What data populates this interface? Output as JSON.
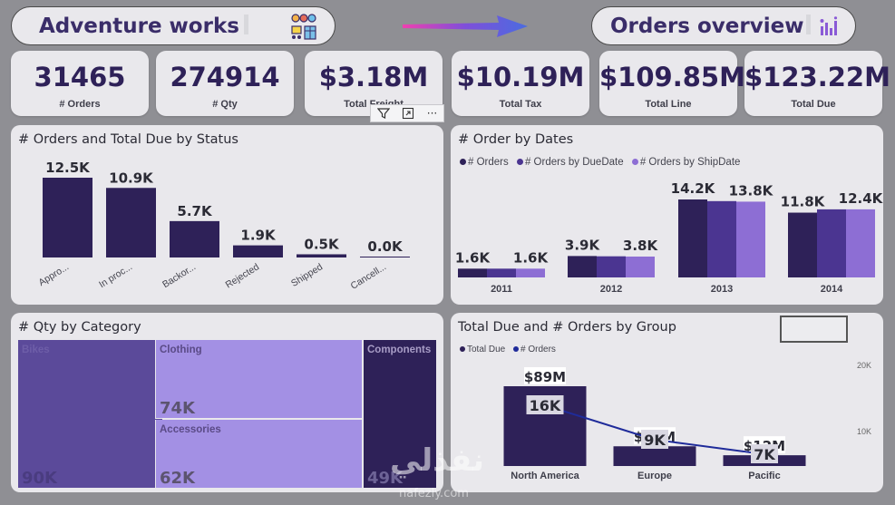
{
  "header": {
    "title": "Adventure works",
    "page_title": "Orders overview",
    "icons": [
      "people-cart-icon",
      "arrow-gradient-icon",
      "bar-chart-icon"
    ]
  },
  "kpis": [
    {
      "value": "31465",
      "label": "# Orders"
    },
    {
      "value": "274914",
      "label": "# Qty"
    },
    {
      "value": "$3.18M",
      "label": "Total Freight"
    },
    {
      "value": "$10.19M",
      "label": "Total Tax"
    },
    {
      "value": "$109.85M",
      "label": "Total Line"
    },
    {
      "value": "$123.22M",
      "label": "Total Due"
    }
  ],
  "visual_toolbar": {
    "filter": "filter-icon",
    "focus": "focus-mode-icon",
    "more": "···"
  },
  "status_chart": {
    "title": "# Orders and Total Due by Status",
    "chart_data": {
      "type": "bar",
      "categories": [
        "Appro...",
        "In proc...",
        "Backor...",
        "Rejected",
        "Shipped",
        "Cancell..."
      ],
      "values": [
        12.5,
        10.9,
        5.7,
        1.9,
        0.5,
        0.0
      ],
      "labels": [
        "12.5K",
        "10.9K",
        "5.7K",
        "1.9K",
        "0.5K",
        "0.0K"
      ],
      "color": "#2e2158"
    }
  },
  "dates_chart": {
    "title": "# Order by Dates",
    "legend": [
      "# Orders",
      "# Orders by DueDate",
      "# Orders by ShipDate"
    ],
    "chart_data": {
      "type": "bar",
      "categories": [
        "2011",
        "2012",
        "2013",
        "2014"
      ],
      "series": [
        {
          "name": "# Orders",
          "values": [
            1.6,
            3.9,
            14.2,
            11.8
          ],
          "color": "#2e2158"
        },
        {
          "name": "# Orders by DueDate",
          "values": [
            1.6,
            3.85,
            13.9,
            12.4
          ],
          "color": "#4b3591"
        },
        {
          "name": "# Orders by ShipDate",
          "values": [
            1.6,
            3.8,
            13.8,
            12.4
          ],
          "color": "#8d6ed4"
        }
      ],
      "labels": [
        [
          "1.6K",
          "1.6K"
        ],
        [
          "3.9K",
          "3.8K"
        ],
        [
          "14.2K",
          "13.8K"
        ],
        [
          "11.8K",
          "12.4K"
        ]
      ]
    }
  },
  "category_chart": {
    "title": "# Qty by Category",
    "chart_data": {
      "type": "treemap",
      "items": [
        {
          "name": "Bikes",
          "value": 90,
          "label": "90K",
          "color": "#5b4a9a"
        },
        {
          "name": "Clothing",
          "value": 74,
          "label": "74K",
          "color": "#a390e4"
        },
        {
          "name": "Accessories",
          "value": 62,
          "label": "62K",
          "color": "#a390e4"
        },
        {
          "name": "Components",
          "value": 49,
          "label": "49K",
          "color": "#2e2158"
        }
      ]
    }
  },
  "group_chart": {
    "title": "Total Due and # Orders by Group",
    "legend": [
      "Total Due",
      "# Orders"
    ],
    "axis_ticks": [
      "20K",
      "10K"
    ],
    "chart_data": {
      "type": "bar",
      "categories": [
        "North America",
        "Europe",
        "Pacific"
      ],
      "series": [
        {
          "name": "Total Due",
          "values": [
            89,
            22,
            12
          ],
          "labels": [
            "$89M",
            "$22M",
            "$12M"
          ],
          "color": "#2e2158"
        },
        {
          "name": "# Orders",
          "values": [
            16,
            9,
            7
          ],
          "labels": [
            "16K",
            "9K",
            "7K"
          ],
          "color": "#1f2b9a"
        }
      ]
    }
  },
  "watermark": {
    "arabic": "نفذلي",
    "latin": "nafezly.com"
  }
}
